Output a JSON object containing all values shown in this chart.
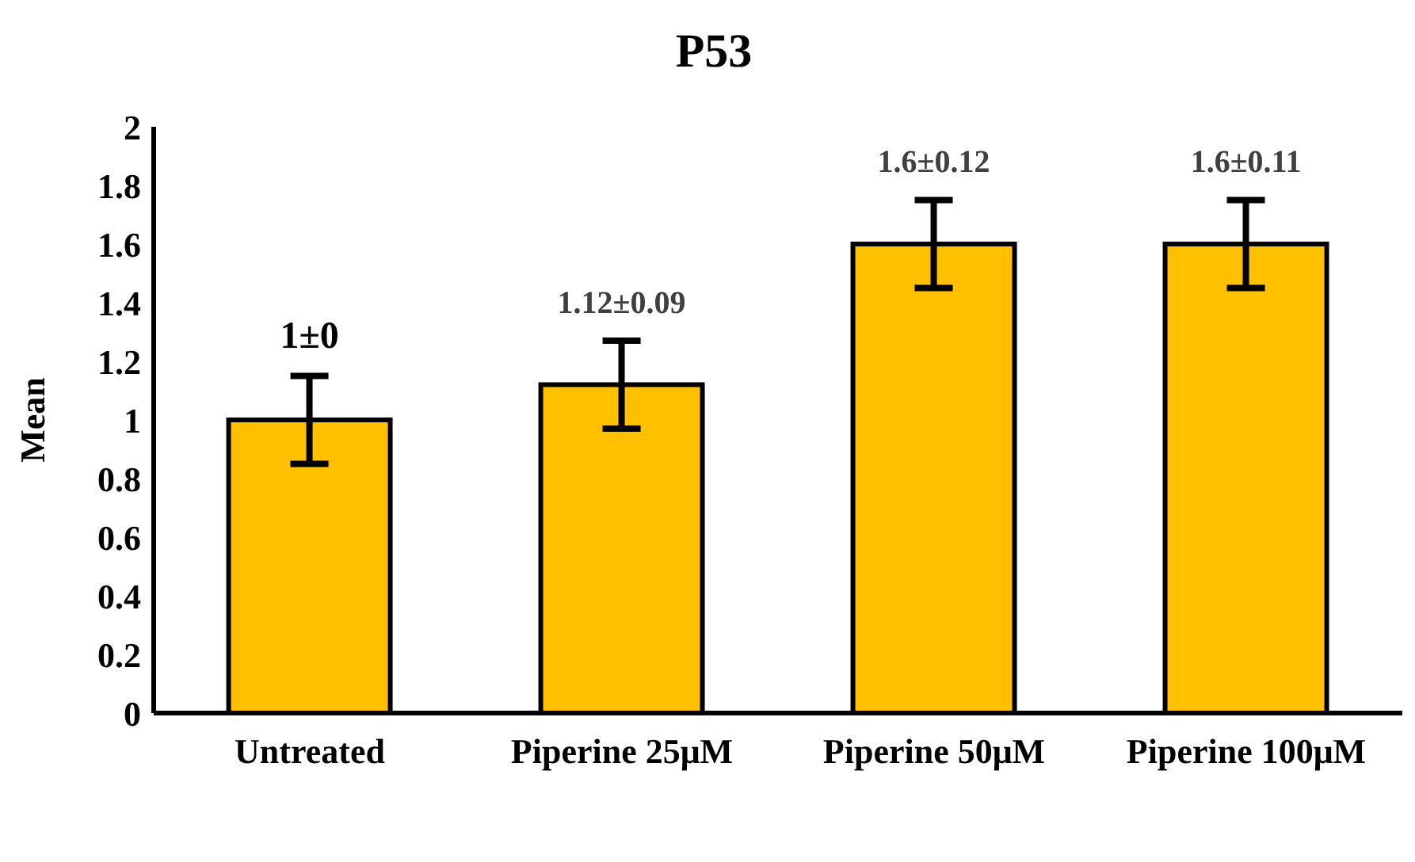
{
  "chart_data": {
    "type": "bar",
    "title": "P53",
    "ylabel": "Mean",
    "categories": [
      "Untreated",
      "Piperine 25μM",
      "Piperine 50μM",
      "Piperine 100μM"
    ],
    "values": [
      1,
      1.12,
      1.6,
      1.6
    ],
    "errors": [
      0.15,
      0.15,
      0.15,
      0.15
    ],
    "value_labels": [
      "1±0",
      "1.12±0.09",
      "1.6±0.12",
      "1.6±0.11"
    ],
    "color": "#ffc000",
    "ylim": [
      0,
      2
    ],
    "yticks": [
      0,
      0.2,
      0.4,
      0.6,
      0.8,
      1,
      1.2,
      1.4,
      1.6,
      1.8,
      2
    ],
    "grid": false,
    "legend": false
  }
}
